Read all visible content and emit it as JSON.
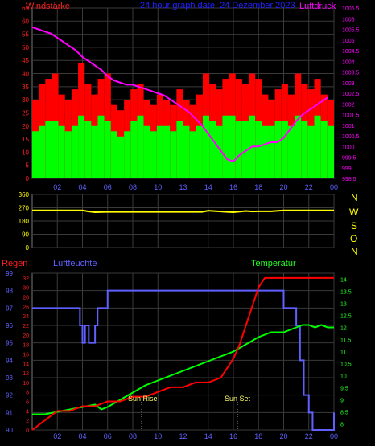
{
  "header": {
    "wind_label": "Windstärke",
    "title": "24 hour graph date: 24 Dezember 2023",
    "pressure_label": "Luftdruck"
  },
  "panel2": {
    "compass": [
      "N",
      "W",
      "S",
      "O",
      "N"
    ]
  },
  "panel3": {
    "rain_label": "Regen",
    "humidity_label": "Luftfeuchte",
    "temp_label": "Temperatur",
    "sunrise_label": "Sun Rise",
    "sunset_label": "Sun Set"
  },
  "colors": {
    "wind_gust": "#ff0000",
    "wind_avg": "#00ff00",
    "pressure": "#ff00ff",
    "direction": "#ffff00",
    "rain": "#ff0000",
    "humidity": "#6060ff",
    "temperature": "#00ff00",
    "grid": "#3a3a3a"
  },
  "chart_data": [
    {
      "type": "line",
      "x_ticks": [
        "02",
        "04",
        "06",
        "08",
        "10",
        "13",
        "14",
        "16",
        "18",
        "20",
        "22",
        "00"
      ],
      "y_left_ticks": [
        0,
        5,
        10,
        15,
        20,
        25,
        30,
        35,
        40,
        45,
        50,
        55,
        60,
        65
      ],
      "y_right_ticks": [
        998.5,
        999,
        999.5,
        1000,
        1000.5,
        1001,
        1001.5,
        1002,
        1002.5,
        1003,
        1003.5,
        1004,
        1004.5,
        1005,
        1005.5,
        1006,
        1006.5
      ],
      "ylim_left": [
        0,
        65
      ],
      "ylim_right": [
        998.5,
        1006.5
      ],
      "series": [
        {
          "name": "Windstärke",
          "values": [
            30,
            36,
            38,
            40,
            32,
            30,
            34,
            44,
            36,
            32,
            38,
            40,
            28,
            26,
            30,
            34,
            36,
            30,
            28,
            32,
            30,
            28,
            34,
            30,
            28,
            32,
            40,
            36,
            34,
            38,
            40,
            38,
            36,
            40,
            38,
            32,
            30,
            34,
            36,
            32,
            40,
            36,
            34,
            38,
            32,
            30
          ]
        },
        {
          "name": "Windstärke",
          "values": [
            18,
            20,
            22,
            22,
            20,
            18,
            20,
            24,
            22,
            20,
            24,
            22,
            18,
            16,
            18,
            22,
            24,
            20,
            18,
            20,
            20,
            18,
            22,
            20,
            18,
            20,
            24,
            22,
            20,
            24,
            24,
            22,
            22,
            24,
            22,
            20,
            20,
            22,
            22,
            20,
            24,
            22,
            20,
            24,
            22,
            20
          ]
        },
        {
          "name": "Luftdruck",
          "x": [
            0,
            0.5,
            1,
            1.5,
            2,
            2.5,
            3,
            3.5,
            4,
            4.5,
            5,
            5.5,
            6,
            6.5,
            7,
            7.5,
            8,
            8.5,
            9,
            9.5,
            10,
            10.5,
            11,
            11.5,
            12,
            12.5,
            13,
            13.5,
            14,
            14.5,
            15,
            15.5,
            16,
            16.5,
            17,
            17.5,
            18,
            18.5,
            19,
            19.5,
            20,
            20.5,
            21,
            21.5,
            22,
            22.5,
            23,
            23.5
          ],
          "values": [
            1005.6,
            1005.5,
            1005.4,
            1005.3,
            1005.1,
            1004.9,
            1004.7,
            1004.5,
            1004.2,
            1004.0,
            1003.8,
            1003.6,
            1003.3,
            1003.1,
            1003.0,
            1002.9,
            1002.9,
            1002.8,
            1002.7,
            1002.6,
            1002.5,
            1002.4,
            1002.2,
            1002.0,
            1001.8,
            1001.6,
            1001.3,
            1001.0,
            1000.6,
            1000.2,
            999.8,
            999.4,
            999.3,
            999.6,
            999.8,
            1000.0,
            1000.0,
            1000.1,
            1000.2,
            1000.2,
            1000.4,
            1000.8,
            1001.2,
            1001.5,
            1001.7,
            1001.9,
            1002.1,
            1002.3
          ]
        }
      ]
    },
    {
      "type": "line",
      "x_ticks": [
        "02",
        "04",
        "06",
        "08",
        "10",
        "13",
        "14",
        "16",
        "18",
        "20",
        "22",
        "00"
      ],
      "y_ticks": [
        0,
        90,
        180,
        270,
        360
      ],
      "ylim": [
        0,
        360
      ],
      "series": [
        {
          "x": [
            0,
            4,
            4.5,
            5,
            6,
            13.5,
            14,
            15.5,
            16,
            17,
            17.5,
            18,
            19,
            20,
            24
          ],
          "values": [
            252,
            252,
            245,
            240,
            242,
            242,
            250,
            242,
            240,
            248,
            245,
            246,
            246,
            252,
            252
          ]
        }
      ]
    },
    {
      "type": "line",
      "x_ticks": [
        "02",
        "04",
        "06",
        "08",
        "10",
        "12",
        "14",
        "16",
        "18",
        "20",
        "22",
        "00"
      ],
      "y_left_ticks": [
        90,
        91,
        92,
        93,
        94,
        95,
        96,
        97,
        98,
        99
      ],
      "y_rain_ticks": [
        0,
        2,
        4,
        6,
        8,
        10,
        12,
        14,
        16,
        18,
        20,
        22,
        24,
        26,
        28,
        30,
        32
      ],
      "y_temp_ticks": [
        8,
        8.5,
        9,
        9.5,
        10,
        10.5,
        11,
        11.5,
        12,
        12.5,
        13,
        13.5,
        14
      ],
      "series": [
        {
          "name": "Luftfeuchte",
          "x": [
            0,
            3.5,
            3.8,
            4,
            4.2,
            4.5,
            5,
            5.2,
            5.6,
            6,
            6.5,
            19.5,
            20,
            21,
            21.3,
            21.6,
            22,
            22.3,
            23.5,
            24
          ],
          "values": [
            97,
            97,
            96,
            95,
            96,
            95,
            96,
            97,
            97,
            98,
            98,
            98,
            97,
            96,
            94,
            92,
            91,
            90,
            90,
            91
          ]
        },
        {
          "name": "Regen",
          "x": [
            0,
            0.5,
            1,
            1.5,
            2,
            3,
            4,
            5,
            6,
            7,
            8,
            9,
            10,
            11,
            12,
            13,
            14,
            15,
            15.5,
            16,
            16.5,
            17,
            17.5,
            18,
            18.5,
            19,
            20,
            21,
            22,
            23,
            24
          ],
          "values": [
            0,
            1,
            2,
            3,
            4,
            4,
            5,
            5,
            6,
            6,
            7,
            7,
            8,
            9,
            9,
            10,
            10,
            11,
            13,
            15,
            18,
            22,
            26,
            30,
            32,
            32,
            32,
            32,
            32,
            32,
            32
          ]
        },
        {
          "name": "Temperatur",
          "x": [
            0,
            1,
            2,
            3,
            4,
            5,
            5.5,
            6,
            7,
            8,
            9,
            10,
            11,
            12,
            13,
            14,
            15,
            16,
            17,
            18,
            19,
            20,
            20.5,
            21,
            21.5,
            22,
            22.5,
            23,
            23.5,
            24
          ],
          "values": [
            8.4,
            8.4,
            8.5,
            8.6,
            8.7,
            8.8,
            8.6,
            8.7,
            9.0,
            9.3,
            9.6,
            9.8,
            10.0,
            10.2,
            10.4,
            10.6,
            10.8,
            11.0,
            11.3,
            11.6,
            11.8,
            11.8,
            11.9,
            12.0,
            12.1,
            12.1,
            12.0,
            12.1,
            12.0,
            12.0
          ]
        }
      ]
    }
  ]
}
